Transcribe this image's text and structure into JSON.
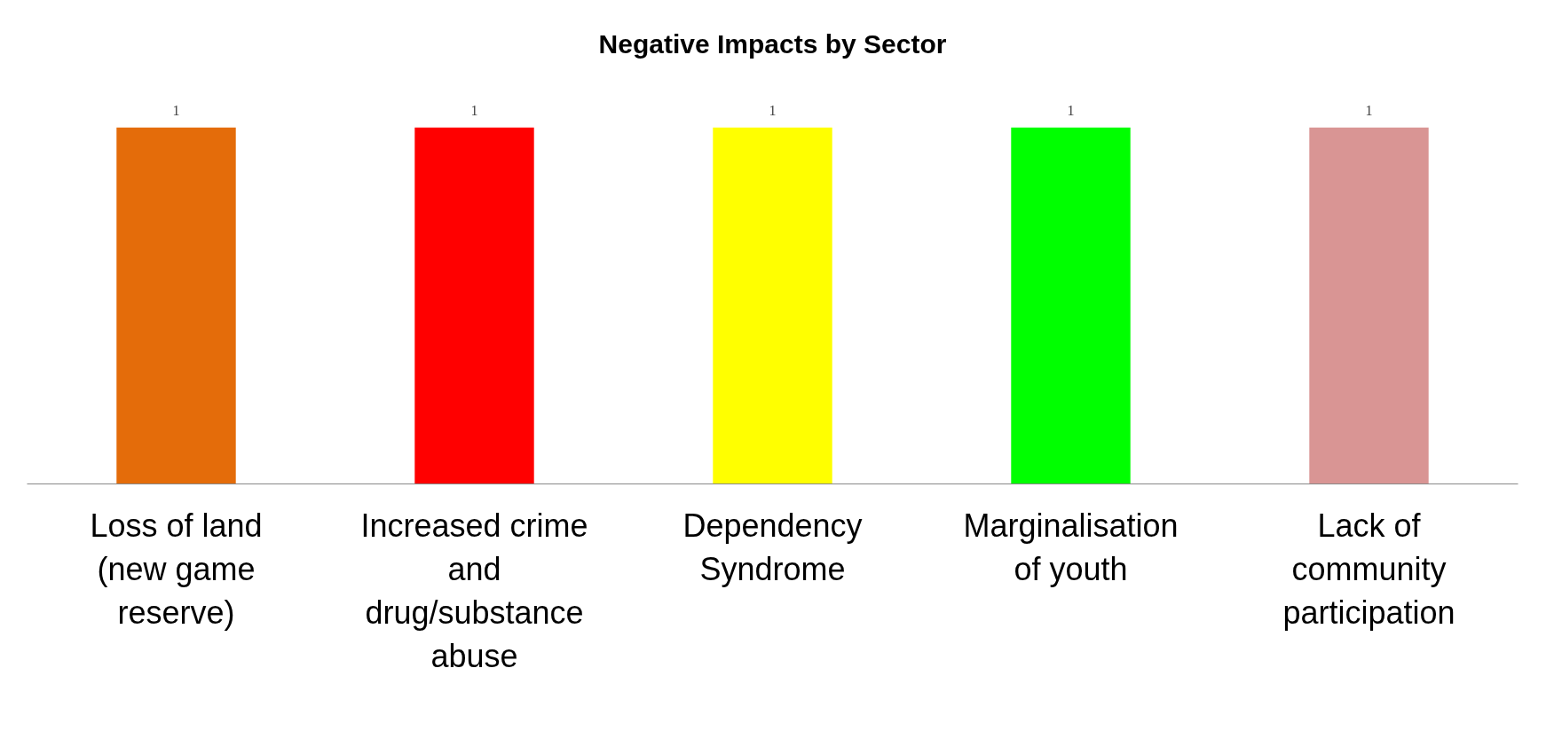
{
  "chart_data": {
    "type": "bar",
    "title": "Negative Impacts by Sector",
    "categories": [
      "Loss of land (new game reserve)",
      "Increased crime and drug/substance abuse",
      "Dependency Syndrome",
      "Marginalisation of youth",
      "Lack of community participation"
    ],
    "values": [
      1,
      1,
      1,
      1,
      1
    ],
    "colors": [
      "#e46c0a",
      "#ff0000",
      "#ffff00",
      "#00ff00",
      "#d99594"
    ],
    "data_labels": true,
    "grid": false
  }
}
